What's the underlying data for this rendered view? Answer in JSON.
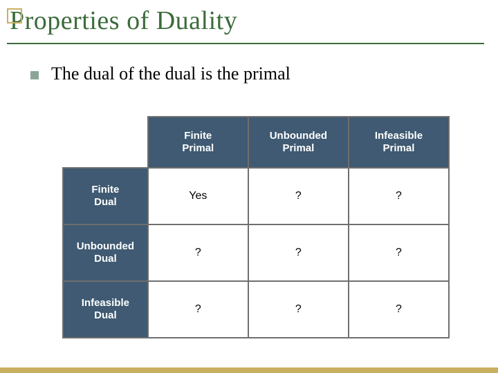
{
  "colors": {
    "title": "#3b6b3b",
    "underline": "#3b6b3b",
    "accent_box_border": "#c9b060",
    "bullet_square": "#8aa596",
    "table_header_bg": "#3f5a72",
    "table_border": "#6f6f6f",
    "footer_bar": "#c9b060",
    "text": "#000000",
    "header_text": "#ffffff"
  },
  "title": "Properties of Duality",
  "bullets": [
    "The dual of the dual is the primal"
  ],
  "table": {
    "columns": [
      {
        "line1": "Finite",
        "line2": "Primal"
      },
      {
        "line1": "Unbounded",
        "line2": "Primal"
      },
      {
        "line1": "Infeasible",
        "line2": "Primal"
      }
    ],
    "rows": [
      {
        "head": {
          "line1": "Finite",
          "line2": "Dual"
        },
        "cells": [
          "Yes",
          "?",
          "?"
        ]
      },
      {
        "head": {
          "line1": "Unbounded",
          "line2": "Dual"
        },
        "cells": [
          "?",
          "?",
          "?"
        ]
      },
      {
        "head": {
          "line1": "Infeasible",
          "line2": "Dual"
        },
        "cells": [
          "?",
          "?",
          "?"
        ]
      }
    ],
    "col_widths_pct": [
      22,
      26,
      26,
      26
    ]
  }
}
